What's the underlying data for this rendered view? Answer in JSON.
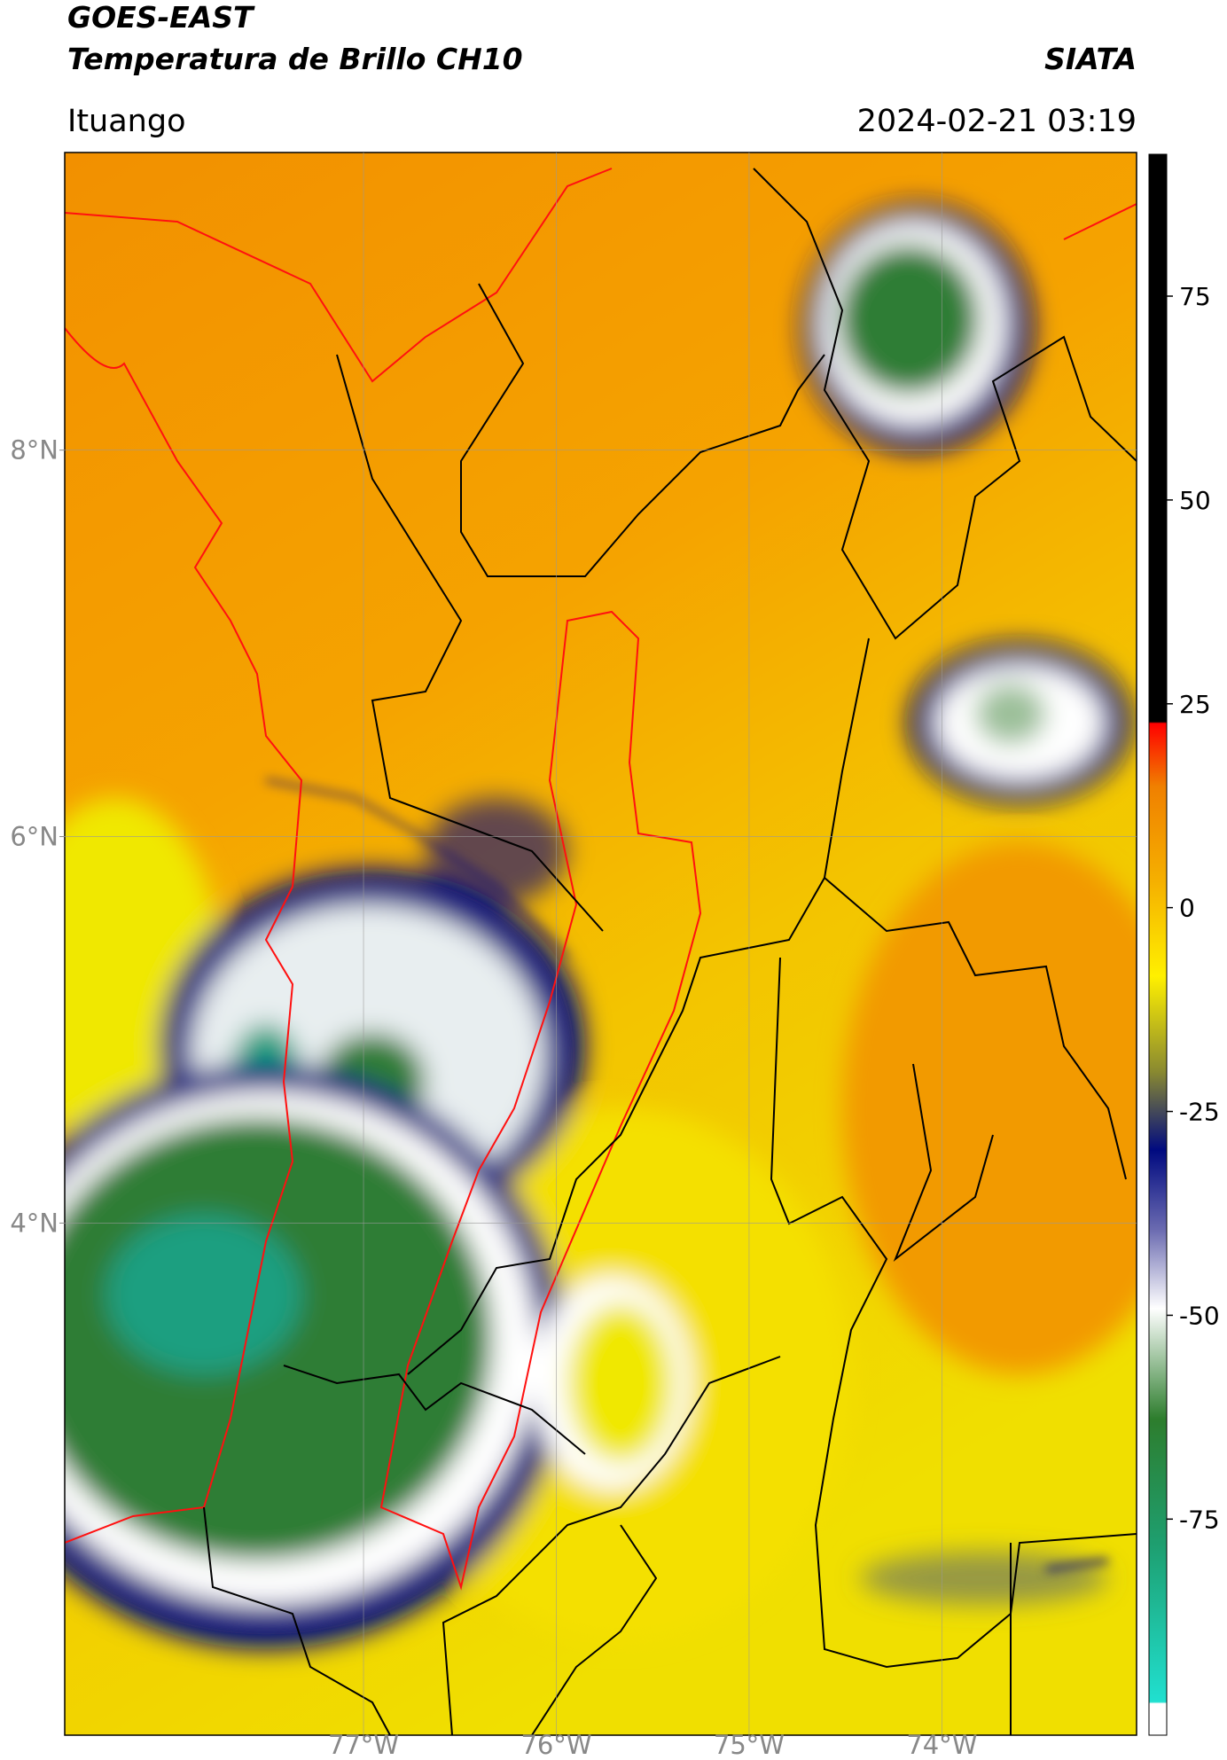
{
  "header": {
    "title": "GOES-EAST",
    "subtitle": "Temperatura de Brillo CH10",
    "source": "SIATA",
    "location": "Ituango",
    "datetime": "2024-02-21 03:19"
  },
  "map": {
    "xlim": [
      -78.55,
      -72.99
    ],
    "ylim": [
      1.35,
      9.54
    ],
    "xticks": [
      {
        "value": -77,
        "label": "77°W"
      },
      {
        "value": -76,
        "label": "76°W"
      },
      {
        "value": -75,
        "label": "75°W"
      },
      {
        "value": -74,
        "label": "74°W"
      }
    ],
    "yticks": [
      {
        "value": 8,
        "label": "8°N"
      },
      {
        "value": 6,
        "label": "6°N"
      },
      {
        "value": 4,
        "label": "4°N"
      }
    ],
    "grid": true
  },
  "colorbar": {
    "lim": [
      -101.5,
      92.4
    ],
    "ticks": [
      75,
      50,
      25,
      0,
      -25,
      -50,
      -75
    ]
  }
}
